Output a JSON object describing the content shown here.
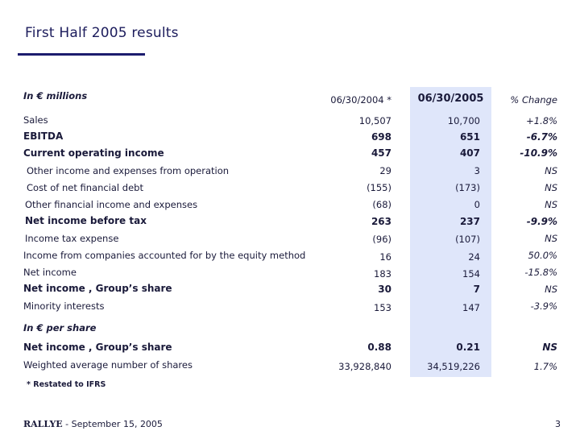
{
  "title": "First Half 2005 results",
  "table": {
    "units_label": "In € millions",
    "col1_header": "06/30/2004 *",
    "col2_header": "06/30/2005",
    "col3_header": "% Change",
    "rows": [
      {
        "label": "Sales",
        "v2004": "10,507",
        "v2005": "10,700",
        "change": "+1.8%"
      },
      {
        "label": "EBITDA",
        "v2004": "698",
        "v2005": "651",
        "change": "-6.7%"
      },
      {
        "label": "Current operating income",
        "v2004": "457",
        "v2005": "407",
        "change": "-10.9%"
      },
      {
        "label": "Other income and expenses from operation",
        "v2004": "29",
        "v2005": "3",
        "change": "NS"
      },
      {
        "label": "Cost of net financial debt",
        "v2004": "(155)",
        "v2005": "(173)",
        "change": "NS"
      },
      {
        "label": "Other financial income and expenses",
        "v2004": "(68)",
        "v2005": "0",
        "change": "NS"
      },
      {
        "label": "Net income before tax",
        "v2004": "263",
        "v2005": "237",
        "change": "-9.9%"
      },
      {
        "label": "Income tax expense",
        "v2004": "(96)",
        "v2005": "(107)",
        "change": "NS"
      },
      {
        "label": "Income from companies accounted for by the equity method",
        "v2004": "16",
        "v2005": "24",
        "change": "50.0%"
      },
      {
        "label": "Net income",
        "v2004": "183",
        "v2005": "154",
        "change": "-15.8%"
      },
      {
        "label": "Net income , Group’s share",
        "v2004": "30",
        "v2005": "7",
        "change": "NS"
      },
      {
        "label": "Minority interests",
        "v2004": "153",
        "v2005": "147",
        "change": "-3.9%"
      }
    ],
    "per_share_label": "In € per share",
    "per_share_rows": [
      {
        "label": "Net income , Group’s share",
        "v2004": "0.88",
        "v2005": "0.21",
        "change": "NS"
      },
      {
        "label": "Weighted average number of shares",
        "v2004": "33,928,840",
        "v2005": "34,519,226",
        "change": "1.7%"
      }
    ]
  },
  "footnote": "* Restated to IFRS",
  "footer": {
    "brand": "RALLYE",
    "text": " - September 15, 2005",
    "page": "3"
  }
}
